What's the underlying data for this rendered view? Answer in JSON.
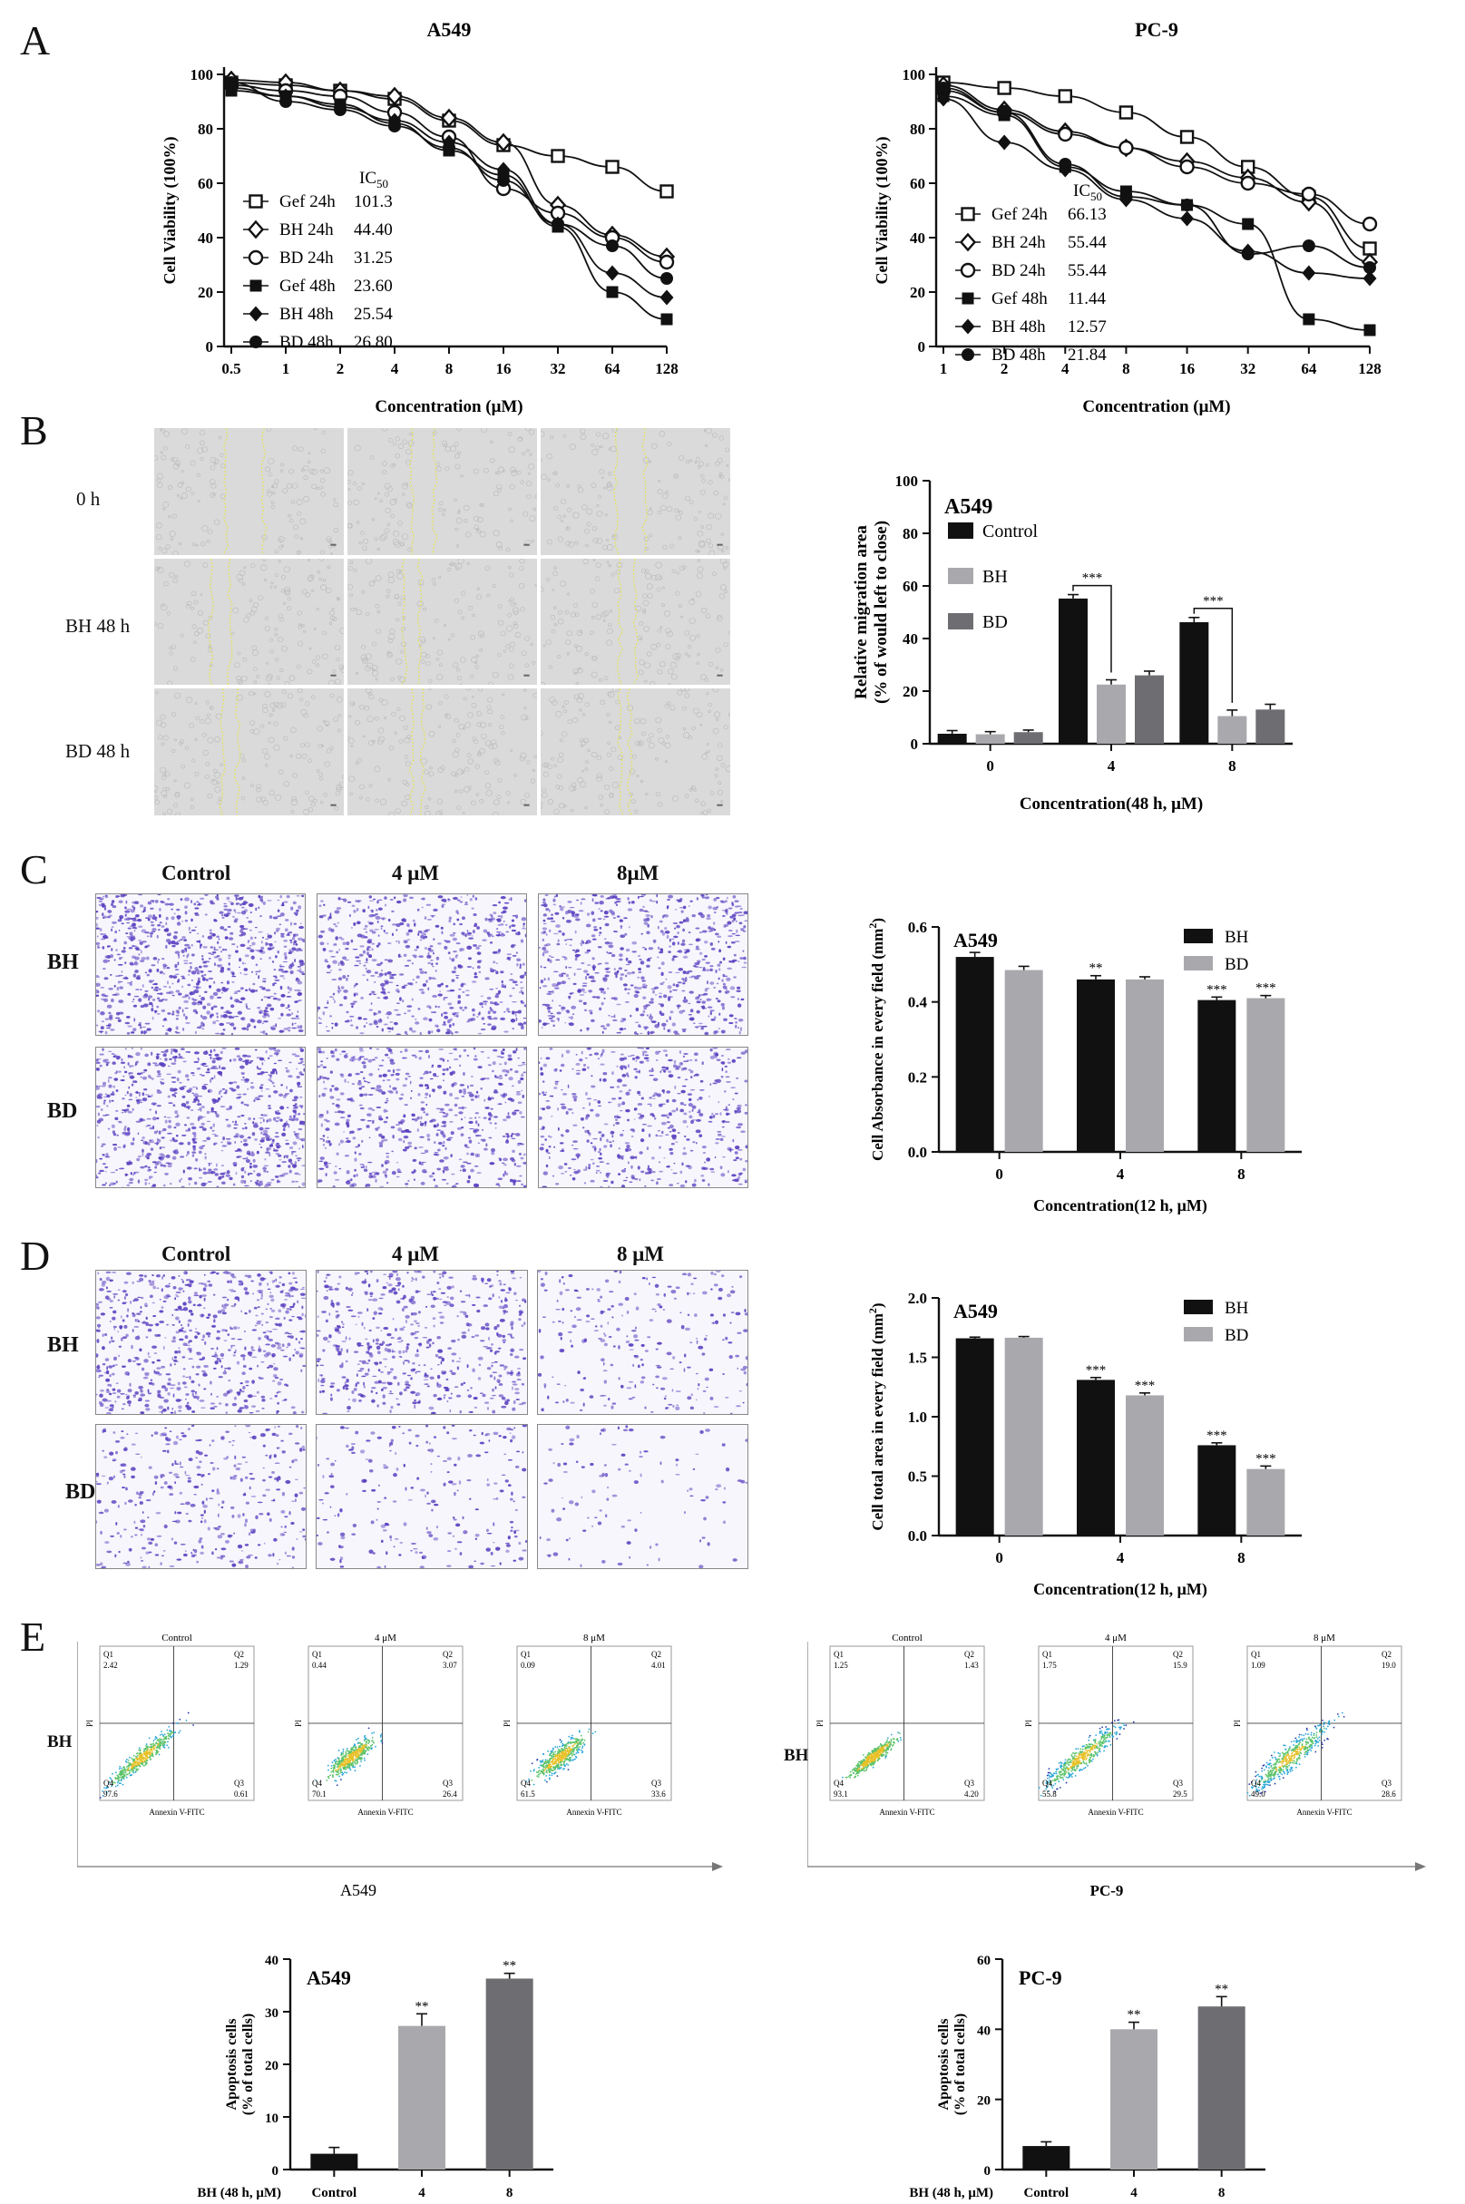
{
  "panels": {
    "A": "A",
    "B": "B",
    "C": "C",
    "D": "D",
    "E": "E"
  },
  "colors": {
    "black": "#111111",
    "lightgray": "#a9a9ad",
    "darkgray": "#6e6e72",
    "wound_bg": "#d9dad9",
    "wound_line": "#e6e35a",
    "crystal": "#5a3fc0",
    "flow_blue": "#2a3aa8"
  },
  "chartA1": {
    "type": "line",
    "title": "A549",
    "xlabel": "Concentration (μM)",
    "ylabel": "Cell Viability (100%)",
    "x_scale": "log2",
    "x_ticks": [
      "0.5",
      "1",
      "2",
      "4",
      "8",
      "16",
      "32",
      "64",
      "128"
    ],
    "y_ticks": [
      "0",
      "20",
      "40",
      "60",
      "80",
      "100"
    ],
    "ylim": [
      0,
      100
    ],
    "ic50_header": "IC50",
    "legend": [
      {
        "name": "Gef 24h",
        "ic50": "101.3",
        "marker": "square-open"
      },
      {
        "name": "BH 24h",
        "ic50": "44.40",
        "marker": "diamond-open"
      },
      {
        "name": "BD 24h",
        "ic50": "31.25",
        "marker": "circle-open"
      },
      {
        "name": "Gef 48h",
        "ic50": "23.60",
        "marker": "square"
      },
      {
        "name": "BH 48h",
        "ic50": "25.54",
        "marker": "diamond"
      },
      {
        "name": "BD 48h",
        "ic50": "26.80",
        "marker": "circle"
      }
    ]
  },
  "chartA2": {
    "type": "line",
    "title": "PC-9",
    "xlabel": "Concentration (μM)",
    "ylabel": "Cell Viability (100%)",
    "x_scale": "log2",
    "x_ticks": [
      "1",
      "2",
      "4",
      "8",
      "16",
      "32",
      "64",
      "128"
    ],
    "y_ticks": [
      "0",
      "20",
      "40",
      "60",
      "80",
      "100"
    ],
    "ylim": [
      0,
      100
    ],
    "ic50_header": "IC50",
    "legend": [
      {
        "name": "Gef 24h",
        "ic50": "66.13",
        "marker": "square-open"
      },
      {
        "name": "BH 24h",
        "ic50": "55.44",
        "marker": "diamond-open"
      },
      {
        "name": "BD 24h",
        "ic50": "55.44",
        "marker": "circle-open"
      },
      {
        "name": "Gef 48h",
        "ic50": "11.44",
        "marker": "square"
      },
      {
        "name": "BH 48h",
        "ic50": "12.57",
        "marker": "diamond"
      },
      {
        "name": "BD 48h",
        "ic50": "21.84",
        "marker": "circle"
      }
    ]
  },
  "chart_data": [
    {
      "type": "line",
      "title": "A549",
      "xlabel": "Concentration (μM)",
      "ylabel": "Cell Viability (100%)",
      "x": [
        0.5,
        1,
        2,
        4,
        8,
        16,
        32,
        64,
        128
      ],
      "ylim": [
        0,
        100
      ],
      "series": [
        {
          "name": "Gef 24h",
          "values": [
            97,
            96,
            94,
            91,
            83,
            74,
            70,
            66,
            57
          ]
        },
        {
          "name": "BH 24h",
          "values": [
            98,
            97,
            94,
            92,
            84,
            75,
            52,
            41,
            33
          ]
        },
        {
          "name": "BD 24h",
          "values": [
            96,
            94,
            92,
            86,
            77,
            58,
            49,
            40,
            31
          ]
        },
        {
          "name": "Gef 48h",
          "values": [
            94,
            92,
            89,
            82,
            72,
            63,
            44,
            20,
            10
          ]
        },
        {
          "name": "BH 48h",
          "values": [
            95,
            92,
            88,
            83,
            75,
            65,
            45,
            27,
            18
          ]
        },
        {
          "name": "BD 48h",
          "values": [
            97,
            90,
            87,
            81,
            73,
            61,
            45,
            37,
            25
          ]
        }
      ]
    },
    {
      "type": "line",
      "title": "PC-9",
      "xlabel": "Concentration (μM)",
      "ylabel": "Cell Viability (100%)",
      "x": [
        1,
        2,
        4,
        8,
        16,
        32,
        64,
        128
      ],
      "ylim": [
        0,
        100
      ],
      "series": [
        {
          "name": "Gef 24h",
          "values": [
            97,
            95,
            92,
            86,
            77,
            66,
            55,
            36
          ]
        },
        {
          "name": "BH 24h",
          "values": [
            96,
            87,
            79,
            73,
            68,
            62,
            53,
            31
          ]
        },
        {
          "name": "BD 24h",
          "values": [
            94,
            86,
            78,
            73,
            66,
            60,
            56,
            45
          ]
        },
        {
          "name": "Gef 48h",
          "values": [
            92,
            85,
            66,
            57,
            52,
            45,
            10,
            6
          ]
        },
        {
          "name": "BH 48h",
          "values": [
            91,
            75,
            65,
            54,
            47,
            35,
            27,
            25
          ]
        },
        {
          "name": "BD 48h",
          "values": [
            95,
            86,
            67,
            55,
            52,
            34,
            37,
            29
          ]
        }
      ]
    },
    {
      "type": "bar",
      "title": "A549",
      "xlabel": "Concentration(48 h, μM)",
      "ylabel": "Relative migration area (% of would left to close)",
      "categories": [
        "0",
        "4",
        "8"
      ],
      "ylim": [
        0,
        100
      ],
      "series": [
        {
          "name": "Control",
          "values": [
            3.8,
            55.2,
            46.2
          ],
          "errors": [
            1.2,
            1.5,
            1.8
          ]
        },
        {
          "name": "BH",
          "values": [
            3.6,
            22.5,
            10.5
          ],
          "errors": [
            1.0,
            1.8,
            2.3
          ]
        },
        {
          "name": "BD",
          "values": [
            4.4,
            26.0,
            13.0
          ],
          "errors": [
            0.8,
            1.6,
            2.0
          ]
        }
      ],
      "annotations": [
        "***",
        "***"
      ]
    },
    {
      "type": "bar",
      "title": "A549",
      "xlabel": "Concentration(12 h, μM)",
      "ylabel": "Cell Absorbance in every field (mm2)",
      "categories": [
        "0",
        "4",
        "8"
      ],
      "ylim": [
        0,
        0.6
      ],
      "series": [
        {
          "name": "BH",
          "values": [
            0.52,
            0.46,
            0.405
          ],
          "errors": [
            0.012,
            0.01,
            0.008
          ]
        },
        {
          "name": "BD",
          "values": [
            0.485,
            0.46,
            0.41
          ],
          "errors": [
            0.01,
            0.007,
            0.007
          ]
        }
      ],
      "annotations": [
        "**",
        "***",
        "***"
      ]
    },
    {
      "type": "bar",
      "title": "A549",
      "xlabel": "Concentration(12 h, μM)",
      "ylabel": "Cell total area in every field (mm2)",
      "categories": [
        "0",
        "4",
        "8"
      ],
      "ylim": [
        0,
        2.0
      ],
      "series": [
        {
          "name": "BH",
          "values": [
            1.66,
            1.31,
            0.76
          ],
          "errors": [
            0.01,
            0.02,
            0.02
          ]
        },
        {
          "name": "BD",
          "values": [
            1.665,
            1.18,
            0.56
          ],
          "errors": [
            0.01,
            0.02,
            0.025
          ]
        }
      ],
      "annotations": [
        "***",
        "***",
        "***",
        "***"
      ]
    },
    {
      "type": "bar",
      "title": "A549",
      "xlabel": "BH (48 h, μM)",
      "ylabel": "Apoptosis cells (% of total cells)",
      "categories": [
        "Control",
        "4",
        "8"
      ],
      "ylim": [
        0,
        40
      ],
      "values": [
        3.0,
        27.3,
        36.3
      ],
      "errors": [
        1.2,
        2.3,
        1.0
      ],
      "annotations": [
        "**",
        "**"
      ]
    },
    {
      "type": "bar",
      "title": "PC-9",
      "xlabel": "BH (48 h, μM)",
      "ylabel": "Apoptosis cells (% of total cells)",
      "categories": [
        "Control",
        "4",
        "8"
      ],
      "ylim": [
        0,
        60
      ],
      "values": [
        6.7,
        40.0,
        46.5
      ],
      "errors": [
        1.2,
        2.0,
        2.8
      ],
      "annotations": [
        "**",
        "**"
      ]
    }
  ],
  "panelB": {
    "row_labels": [
      "0 h",
      "BH  48 h",
      "BD  48 h"
    ],
    "bar": {
      "title": "A549",
      "ylabel1": "Relative migration area",
      "ylabel2": "(% of would left to close)",
      "xlabel": "Concentration(48 h, μM)",
      "y_ticks": [
        "0",
        "20",
        "40",
        "60",
        "80",
        "100"
      ],
      "x_ticks": [
        "0",
        "4",
        "8"
      ],
      "legend": [
        "Control",
        "BH",
        "BD"
      ],
      "sig": "***"
    }
  },
  "panelC": {
    "col_labels": [
      "Control",
      "4 μM",
      "8μM"
    ],
    "row_labels": [
      "BH",
      "BD"
    ],
    "bar": {
      "title": "A549",
      "ylabel": "Cell Absorbance in every field (mm",
      "ylabel_sup": "2",
      "ylabel_end": ")",
      "xlabel": "Concentration(12 h, μM)",
      "y_ticks": [
        "0.0",
        "0.2",
        "0.4",
        "0.6"
      ],
      "x_ticks": [
        "0",
        "4",
        "8"
      ],
      "legend": [
        "BH",
        "BD"
      ],
      "sig2": "**",
      "sig3": "***"
    }
  },
  "panelD": {
    "col_labels": [
      "Control",
      "4 μM",
      "8 μM"
    ],
    "row_labels": [
      "BH",
      "BD"
    ],
    "bar": {
      "title": "A549",
      "ylabel": "Cell total area in every field (mm",
      "ylabel_sup": "2",
      "ylabel_end": ")",
      "xlabel": "Concentration(12 h, μM)",
      "y_ticks": [
        "0.0",
        "0.5",
        "1.0",
        "1.5",
        "2.0"
      ],
      "x_ticks": [
        "0",
        "4",
        "8"
      ],
      "legend": [
        "BH",
        "BD"
      ],
      "sig3": "***"
    }
  },
  "panelE": {
    "a549": {
      "row_label": "BH",
      "cell_line": "A549",
      "plots": [
        {
          "title": "Control",
          "q1": "2.42",
          "q2": "1.29",
          "q4": "97.6",
          "q3": "0.61"
        },
        {
          "title": "4 μM",
          "q1": "0.44",
          "q2": "3.07",
          "q4": "70.1",
          "q3": "26.4"
        },
        {
          "title": "8 μM",
          "q1": "0.09",
          "q2": "4.01",
          "q4": "61.5",
          "q3": "33.6"
        }
      ]
    },
    "pc9": {
      "row_label": "BH",
      "cell_line": "PC-9",
      "plots": [
        {
          "title": "Control",
          "q1": "1.25",
          "q2": "1.43",
          "q4": "93.1",
          "q3": "4.20"
        },
        {
          "title": "4 μM",
          "q1": "1.75",
          "q2": "15.9",
          "q4": "55.8",
          "q3": "29.5"
        },
        {
          "title": "8 μM",
          "q1": "1.09",
          "q2": "19.0",
          "q4": "49.0",
          "q3": "28.6"
        }
      ]
    },
    "quadrant_names": [
      "Q1",
      "Q2",
      "Q3",
      "Q4"
    ],
    "axis_x": "Annexin V-FITC",
    "axis_y": "PI",
    "bar_a549": {
      "title": "A549",
      "ylabel1": "Apoptosis cells",
      "ylabel2": "(% of total cells)",
      "xlabel": "BH (48 h, μM)",
      "y_ticks": [
        "0",
        "10",
        "20",
        "30",
        "40"
      ],
      "x_ticks": [
        "Control",
        "4",
        "8"
      ],
      "sig": "**"
    },
    "bar_pc9": {
      "title": "PC-9",
      "ylabel1": "Apoptosis cells",
      "ylabel2": "(% of total cells)",
      "xlabel": "BH (48 h, μM)",
      "y_ticks": [
        "0",
        "20",
        "40",
        "60"
      ],
      "x_ticks": [
        "Control",
        "4",
        "8"
      ],
      "sig": "**"
    }
  }
}
